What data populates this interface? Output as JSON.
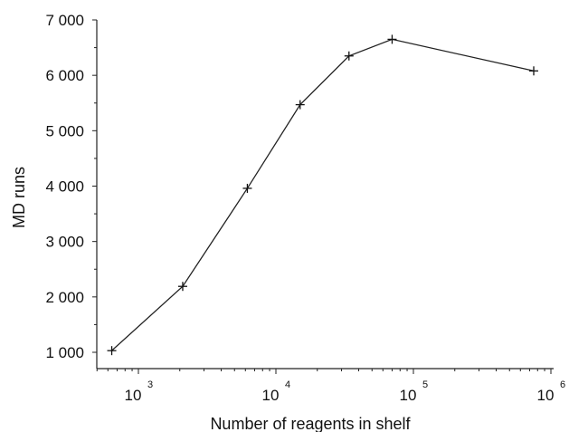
{
  "chart_data": {
    "type": "line",
    "xlabel": "Number of reagents in shelf",
    "ylabel": "MD runs",
    "x_scale": "log",
    "xlim": [
      500,
      1000000
    ],
    "ylim": [
      800,
      7000
    ],
    "grid": false,
    "y_ticks": [
      {
        "value": 1000,
        "label": "1 000"
      },
      {
        "value": 2000,
        "label": "2 000"
      },
      {
        "value": 3000,
        "label": "3 000"
      },
      {
        "value": 4000,
        "label": "4 000"
      },
      {
        "value": 5000,
        "label": "5 000"
      },
      {
        "value": 6000,
        "label": "6 000"
      },
      {
        "value": 7000,
        "label": "7 000"
      }
    ],
    "x_major_ticks": [
      {
        "value": 1000,
        "base": "10",
        "exp": "3"
      },
      {
        "value": 10000,
        "base": "10",
        "exp": "4"
      },
      {
        "value": 100000,
        "base": "10",
        "exp": "5"
      },
      {
        "value": 1000000,
        "base": "10",
        "exp": "6"
      }
    ],
    "series": [
      {
        "x": [
          640,
          2100,
          6200,
          15000,
          34000,
          70000,
          750000
        ],
        "y": [
          1030,
          2190,
          3960,
          5470,
          6350,
          6650,
          6080
        ]
      }
    ]
  }
}
